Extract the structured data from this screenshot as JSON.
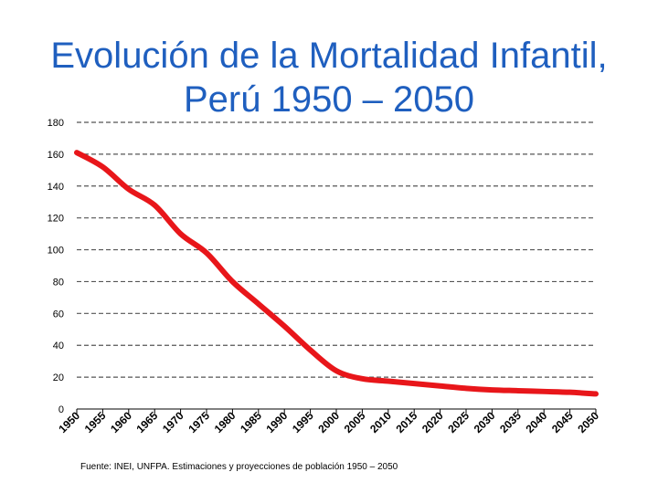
{
  "title": {
    "line1": "Evolución de la Mortalidad Infantil,",
    "line2": "Perú 1950 – 2050"
  },
  "source": "Fuente: INEI, UNFPA. Estimaciones y proyecciones de población 1950 – 2050",
  "colors": {
    "title": "#1f5fbf",
    "series": "#e8161a",
    "grid": "#555555",
    "axis": "#000000"
  },
  "chart_data": {
    "type": "line",
    "title": "Evolución de la Mortalidad Infantil, Perú 1950 – 2050",
    "xlabel": "",
    "ylabel": "",
    "ylim": [
      0,
      180
    ],
    "y_ticks": [
      0,
      20,
      40,
      60,
      80,
      100,
      120,
      140,
      160,
      180
    ],
    "grid": "horizontal dashed",
    "legend": "none",
    "categories": [
      "1950",
      "1955",
      "1960",
      "1965",
      "1970",
      "1975",
      "1980",
      "1985",
      "1990",
      "1995",
      "2000",
      "2005",
      "2010",
      "2015",
      "2020",
      "2025",
      "2030",
      "2035",
      "2040",
      "2045",
      "2050"
    ],
    "series": [
      {
        "values": [
          161,
          152,
          138,
          128,
          110,
          98,
          80,
          66,
          52,
          37,
          24,
          19,
          17.5,
          16,
          14.5,
          13,
          12,
          11.5,
          11,
          10.5,
          9.5
        ]
      }
    ]
  }
}
